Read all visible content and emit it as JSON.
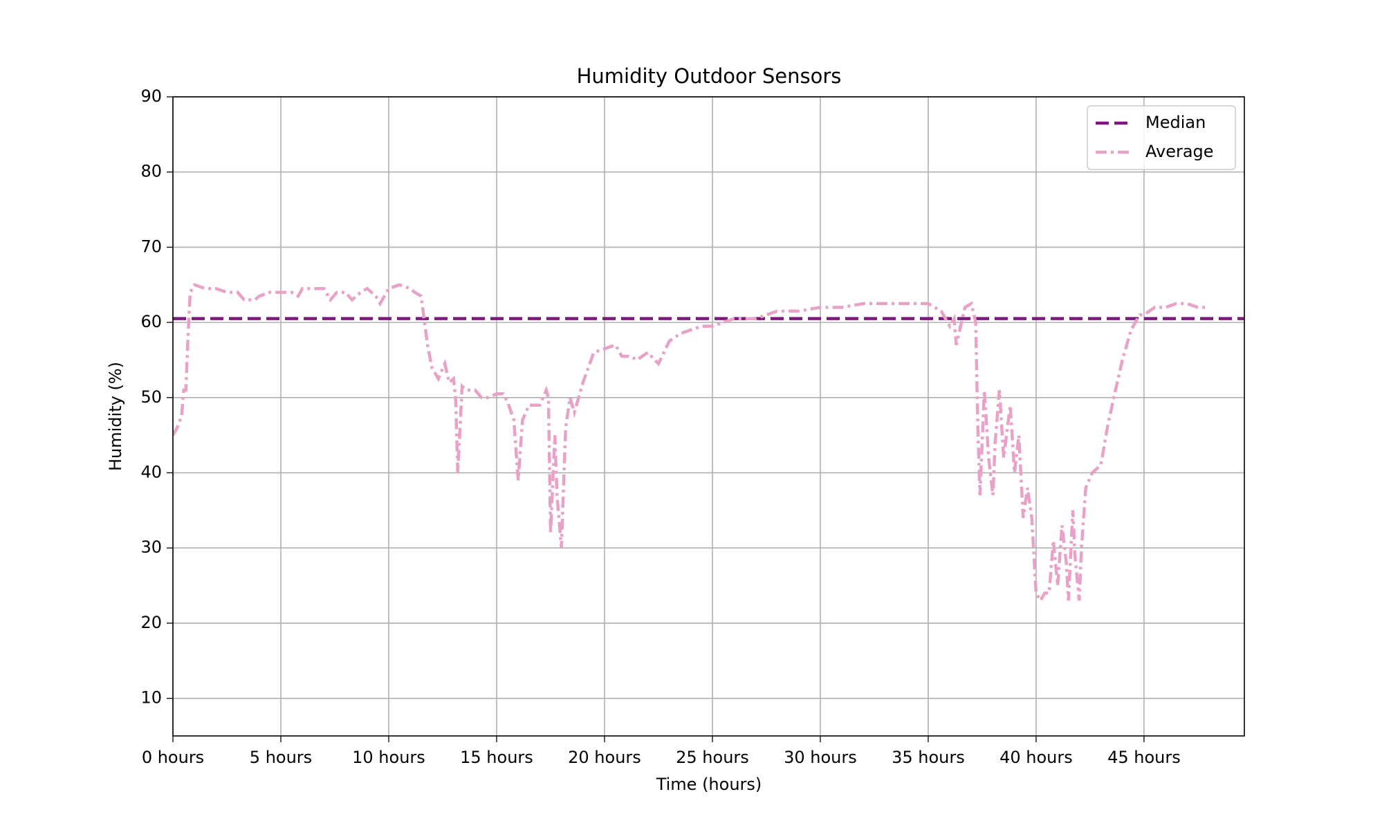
{
  "chart_data": {
    "type": "line",
    "title": "Humidity Outdoor Sensors",
    "x_label": "Time (hours)",
    "y_label": "Humidity (%)",
    "xlim": [
      0,
      49.65
    ],
    "ylim": [
      5,
      90
    ],
    "xticks": [
      {
        "value": 0,
        "label": "0 hours"
      },
      {
        "value": 5,
        "label": "5 hours"
      },
      {
        "value": 10,
        "label": "10 hours"
      },
      {
        "value": 15,
        "label": "15 hours"
      },
      {
        "value": 20,
        "label": "20 hours"
      },
      {
        "value": 25,
        "label": "25 hours"
      },
      {
        "value": 30,
        "label": "30 hours"
      },
      {
        "value": 35,
        "label": "35 hours"
      },
      {
        "value": 40,
        "label": "40 hours"
      },
      {
        "value": 45,
        "label": "45 hours"
      }
    ],
    "yticks": [
      10,
      20,
      30,
      40,
      50,
      60,
      70,
      80,
      90
    ],
    "grid": true,
    "legend": "upper right",
    "series": [
      {
        "name": "Median",
        "color": "#7b1a7b",
        "dash": "dashed",
        "y": 60.5
      },
      {
        "name": "Average",
        "color": "#e8a2c8",
        "dash": "dashdot",
        "x": [
          0,
          0.2,
          0.4,
          0.5,
          0.6,
          0.7,
          0.8,
          1,
          1.5,
          2,
          2.5,
          3,
          3.3,
          3.8,
          4,
          4.5,
          5.5,
          5.8,
          6,
          7,
          7.3,
          7.6,
          8,
          8.3,
          8.7,
          9,
          9.4,
          9.6,
          10,
          10.5,
          11,
          11.2,
          11.5,
          11.8,
          12,
          12.3,
          12.6,
          12.8,
          13,
          13.1,
          13.2,
          13.4,
          13.6,
          14,
          14.3,
          14.6,
          15,
          15.3,
          15.5,
          15.8,
          16,
          16.2,
          16.5,
          17,
          17.3,
          17.4,
          17.5,
          17.7,
          17.8,
          18,
          18.2,
          18.4,
          18.6,
          19,
          19.5,
          20,
          20.5,
          20.8,
          21.2,
          21.5,
          22,
          22.5,
          23,
          23.5,
          24,
          24.5,
          25,
          26,
          27,
          28,
          29,
          30,
          31,
          32,
          33,
          34,
          35,
          35.6,
          36,
          36.2,
          36.3,
          36.7,
          37,
          37.2,
          37.3,
          37.4,
          37.6,
          37.8,
          38,
          38.1,
          38.3,
          38.5,
          38.8,
          39,
          39.2,
          39.4,
          39.6,
          39.8,
          40,
          40.2,
          40.4,
          40.6,
          40.8,
          41,
          41.2,
          41.4,
          41.5,
          41.7,
          41.8,
          42,
          42.1,
          42.3,
          42.6,
          43,
          43.3,
          43.6,
          44,
          44.4,
          44.8,
          45,
          45.5,
          46,
          46.5,
          47,
          47.5,
          48
        ],
        "values": [
          45,
          46,
          47.5,
          51,
          51,
          58,
          64,
          65,
          64.5,
          64.5,
          64,
          64,
          63,
          63,
          63.5,
          64,
          64,
          63.5,
          64.5,
          64.5,
          63,
          64,
          64,
          63,
          64,
          64.5,
          63.5,
          62.5,
          64.5,
          65,
          64.5,
          64,
          63.5,
          57,
          54,
          52.5,
          54.5,
          52,
          52.5,
          50,
          40,
          51.5,
          51,
          51,
          50,
          50,
          50.5,
          50.5,
          49.5,
          47,
          39,
          47,
          49,
          49,
          51,
          50,
          32,
          45,
          37,
          30,
          46,
          50,
          48,
          52,
          56,
          56.5,
          57,
          55.5,
          55.5,
          55,
          56,
          54.5,
          57.5,
          58.5,
          59,
          59.5,
          59.5,
          60.5,
          60.5,
          61.5,
          61.5,
          62,
          62,
          62.5,
          62.5,
          62.5,
          62.5,
          61.5,
          59.5,
          60.5,
          57,
          62,
          62.5,
          60,
          46,
          37,
          51,
          42,
          37,
          44,
          51,
          42,
          49,
          40,
          45,
          34,
          38,
          34,
          24,
          23,
          24,
          24,
          31,
          25,
          33,
          28,
          23,
          35,
          29,
          23,
          30,
          38,
          40,
          41,
          46,
          50,
          55,
          59,
          61,
          61,
          62,
          62,
          62.5,
          62.5,
          62,
          62
        ]
      }
    ]
  }
}
